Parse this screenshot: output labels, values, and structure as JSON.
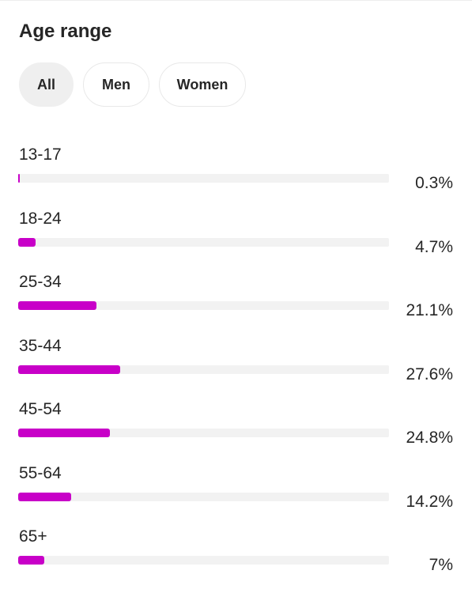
{
  "title": "Age range",
  "filters": [
    {
      "label": "All",
      "active": true
    },
    {
      "label": "Men",
      "active": false
    },
    {
      "label": "Women",
      "active": false
    }
  ],
  "colors": {
    "bar_fill": "#c800c8",
    "bar_track": "#f2f2f2",
    "active_filter_bg": "#efefef"
  },
  "chart_data": {
    "type": "bar",
    "orientation": "horizontal",
    "title": "Age range",
    "categories": [
      "13-17",
      "18-24",
      "25-34",
      "35-44",
      "45-54",
      "55-64",
      "65+"
    ],
    "values": [
      0.3,
      4.7,
      21.1,
      27.6,
      24.8,
      14.2,
      7
    ],
    "value_labels": [
      "0.3%",
      "4.7%",
      "21.1%",
      "27.6%",
      "24.8%",
      "14.2%",
      "7%"
    ],
    "unit": "%",
    "xlim": [
      0,
      100
    ],
    "grid": false,
    "legend": "none"
  }
}
